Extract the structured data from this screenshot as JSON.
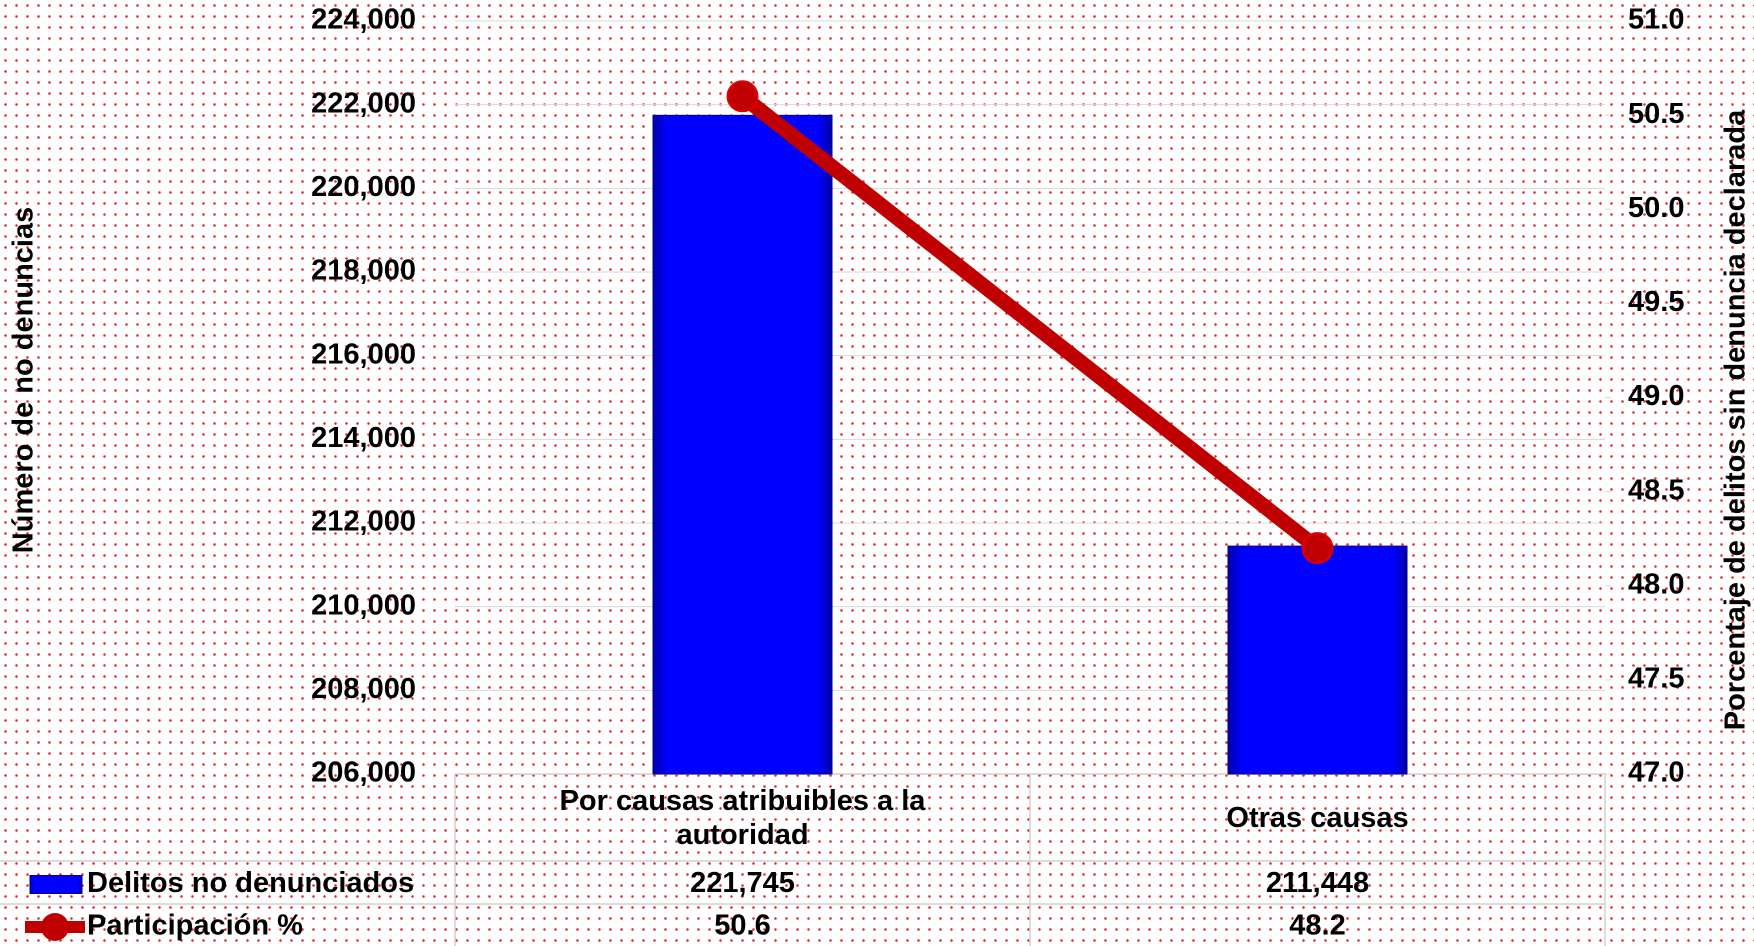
{
  "chart_data": {
    "type": "bar_line",
    "categories": [
      "Por causas atribuibles a la autoridad",
      "Otras causas"
    ],
    "y_label": "Número de no denuncias",
    "y2_label": "Porcentaje de delitos sin denuncia declarada",
    "ylim": [
      206000,
      224000
    ],
    "yticks": [
      {
        "value": 206000,
        "label": "206,000"
      },
      {
        "value": 208000,
        "label": "208,000"
      },
      {
        "value": 210000,
        "label": "210,000"
      },
      {
        "value": 212000,
        "label": "212,000"
      },
      {
        "value": 214000,
        "label": "214,000"
      },
      {
        "value": 216000,
        "label": "216,000"
      },
      {
        "value": 218000,
        "label": "218,000"
      },
      {
        "value": 220000,
        "label": "220,000"
      },
      {
        "value": 222000,
        "label": "222,000"
      },
      {
        "value": 224000,
        "label": "224,000"
      }
    ],
    "y2lim": [
      47,
      51
    ],
    "y2ticks": [
      {
        "value": 47,
        "label": "47.0"
      },
      47.5,
      {
        "value": 48,
        "label": "48.0"
      },
      48.5,
      {
        "value": 49,
        "label": "49.0"
      },
      49.5,
      {
        "value": 50,
        "label": "50.0"
      },
      50.5,
      {
        "value": 51,
        "label": "51.0"
      }
    ],
    "grid": true,
    "series": [
      {
        "name": "Delitos no denunciados",
        "type": "bar",
        "color": "#0000ff",
        "values": [
          221745,
          211448
        ],
        "value_labels": [
          "221,745",
          "211,448"
        ]
      },
      {
        "name": "Participación %",
        "type": "line",
        "color": "#c00000",
        "axis": "y2",
        "values": [
          50.6,
          48.2
        ]
      }
    ]
  }
}
